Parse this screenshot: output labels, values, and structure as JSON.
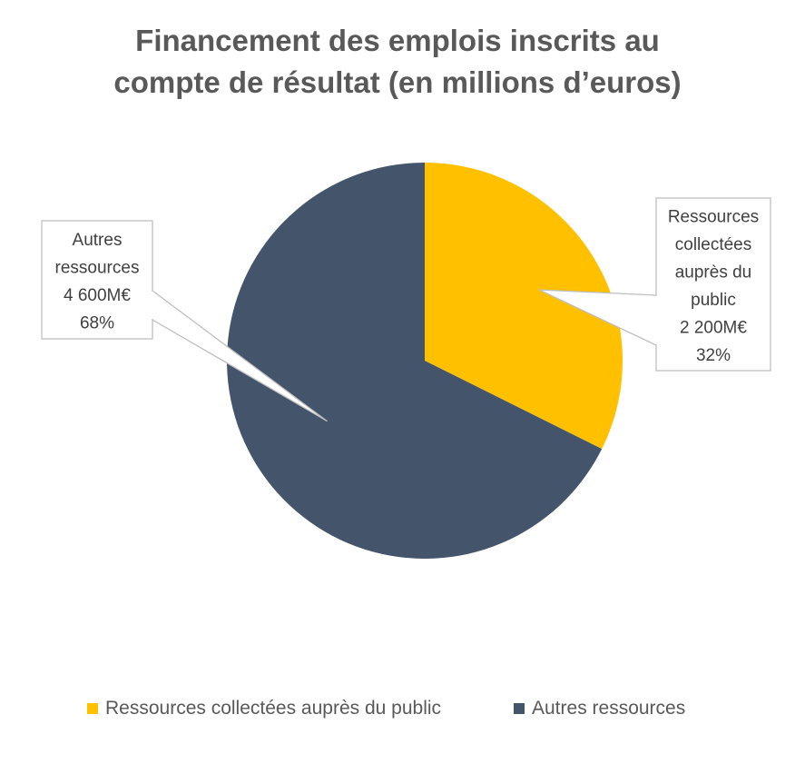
{
  "chart_data": {
    "type": "pie",
    "title_lines": [
      "Financement des emplois inscrits au",
      "compte de résultat (en millions d’euros)"
    ],
    "slices": [
      {
        "name": "Ressources collectées auprès du public",
        "value": 2200,
        "color": "#FFC000",
        "label_lines": [
          "Ressources",
          "collectées",
          "auprès du",
          "public",
          "2 200M€",
          "32%"
        ]
      },
      {
        "name": "Autres ressources",
        "value": 4600,
        "color": "#44546A",
        "label_lines": [
          "Autres",
          "ressources",
          "4 600M€",
          "68%"
        ]
      }
    ],
    "legend": {
      "placement": "bottom",
      "items": [
        {
          "label": "Ressources collectées auprès du public",
          "color": "#FFC000"
        },
        {
          "label": "Autres ressources",
          "color": "#44546A"
        }
      ]
    }
  }
}
